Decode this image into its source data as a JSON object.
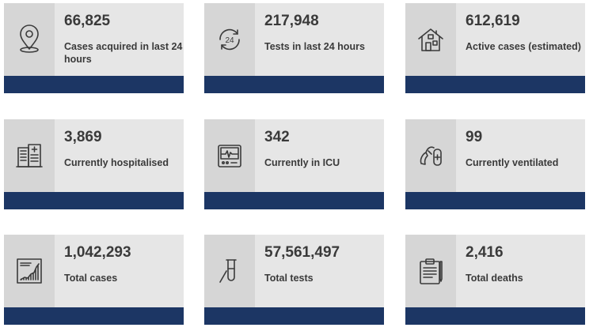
{
  "cards": [
    {
      "value": "66,825",
      "label": "Cases acquired in last 24 hours",
      "icon": "location-pin-icon"
    },
    {
      "value": "217,948",
      "label": "Tests in last 24 hours",
      "icon": "24-hours-icon"
    },
    {
      "value": "612,619",
      "label": "Active cases (estimated)",
      "icon": "house-icon"
    },
    {
      "value": "3,869",
      "label": "Currently hospitalised",
      "icon": "hospital-icon"
    },
    {
      "value": "342",
      "label": "Currently in ICU",
      "icon": "heart-monitor-icon"
    },
    {
      "value": "99",
      "label": "Currently ventilated",
      "icon": "ventilator-icon"
    },
    {
      "value": "1,042,293",
      "label": "Total cases",
      "icon": "growth-chart-icon"
    },
    {
      "value": "57,561,497",
      "label": "Total tests",
      "icon": "test-tube-icon"
    },
    {
      "value": "2,416",
      "label": "Total deaths",
      "icon": "clipboard-icon"
    }
  ],
  "colors": {
    "bar": "#1c3664",
    "card": "#e6e6e6",
    "icon_bg": "#d6d6d6",
    "text": "#3a3a3a"
  }
}
